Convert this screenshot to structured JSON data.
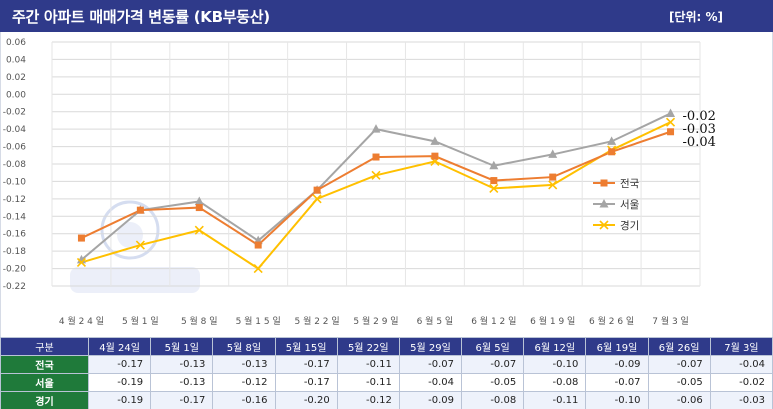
{
  "header": {
    "title": "주간 아파트 매매가격 변동률 (KB부동산)",
    "unit": "[단위: %]"
  },
  "colors": {
    "header_bg": "#2f3a8a",
    "row_head_bg": "#1f7a3a",
    "series_national": "#ed7d31",
    "series_seoul": "#a5a5a5",
    "series_gyeonggi": "#ffc000"
  },
  "chart_data": {
    "type": "line",
    "title": "주간 아파트 매매가격 변동률 (KB부동산)",
    "x": [
      "4월 24일",
      "5월 1일",
      "5월 8일",
      "5월 15일",
      "5월 22일",
      "5월 29일",
      "6월 5일",
      "6월 12일",
      "6월 19일",
      "6월 26일",
      "7월 3일"
    ],
    "x_tick_labels": [
      "4월 24일",
      "5월 1일",
      "5월 8일",
      "5월 15일",
      "5월 22일",
      "5월 29일",
      "6월 5일",
      "6월 12일",
      "6월 19일",
      "6월 26일",
      "7월 3일"
    ],
    "y_ticks": [
      "0.06",
      "0.04",
      "0.02",
      "0.00",
      "-0.02",
      "-0.04",
      "-0.06",
      "-0.08",
      "-0.10",
      "-0.12",
      "-0.14",
      "-0.16",
      "-0.18",
      "-0.20",
      "-0.22"
    ],
    "ylim": [
      -0.22,
      0.06
    ],
    "grid": true,
    "legend_position": "right",
    "series": [
      {
        "name": "전국",
        "marker": "square",
        "color": "#ed7d31",
        "values": [
          -0.165,
          -0.133,
          -0.13,
          -0.173,
          -0.11,
          -0.072,
          -0.071,
          -0.099,
          -0.095,
          -0.066,
          -0.043
        ],
        "end_label": "-0.04"
      },
      {
        "name": "서울",
        "marker": "triangle",
        "color": "#a5a5a5",
        "values": [
          -0.19,
          -0.133,
          -0.123,
          -0.168,
          -0.11,
          -0.04,
          -0.054,
          -0.082,
          -0.069,
          -0.054,
          -0.022
        ],
        "end_label": "-0.02"
      },
      {
        "name": "경기",
        "marker": "x",
        "color": "#ffc000",
        "values": [
          -0.193,
          -0.173,
          -0.156,
          -0.2,
          -0.12,
          -0.093,
          -0.077,
          -0.108,
          -0.104,
          -0.064,
          -0.032
        ],
        "end_label": "-0.03"
      }
    ]
  },
  "table": {
    "header": [
      "구분",
      "4월 24일",
      "5월 1일",
      "5월 8일",
      "5월 15일",
      "5월 22일",
      "5월 29일",
      "6월 5일",
      "6월 12일",
      "6월 19일",
      "6월 26일",
      "7월 3일"
    ],
    "rows": [
      {
        "label": "전국",
        "cells": [
          "-0.17",
          "-0.13",
          "-0.13",
          "-0.17",
          "-0.11",
          "-0.07",
          "-0.07",
          "-0.10",
          "-0.09",
          "-0.07",
          "-0.04"
        ]
      },
      {
        "label": "서울",
        "cells": [
          "-0.19",
          "-0.13",
          "-0.12",
          "-0.17",
          "-0.11",
          "-0.04",
          "-0.05",
          "-0.08",
          "-0.07",
          "-0.05",
          "-0.02"
        ]
      },
      {
        "label": "경기",
        "cells": [
          "-0.19",
          "-0.17",
          "-0.16",
          "-0.20",
          "-0.12",
          "-0.09",
          "-0.08",
          "-0.11",
          "-0.10",
          "-0.06",
          "-0.03"
        ]
      }
    ]
  }
}
